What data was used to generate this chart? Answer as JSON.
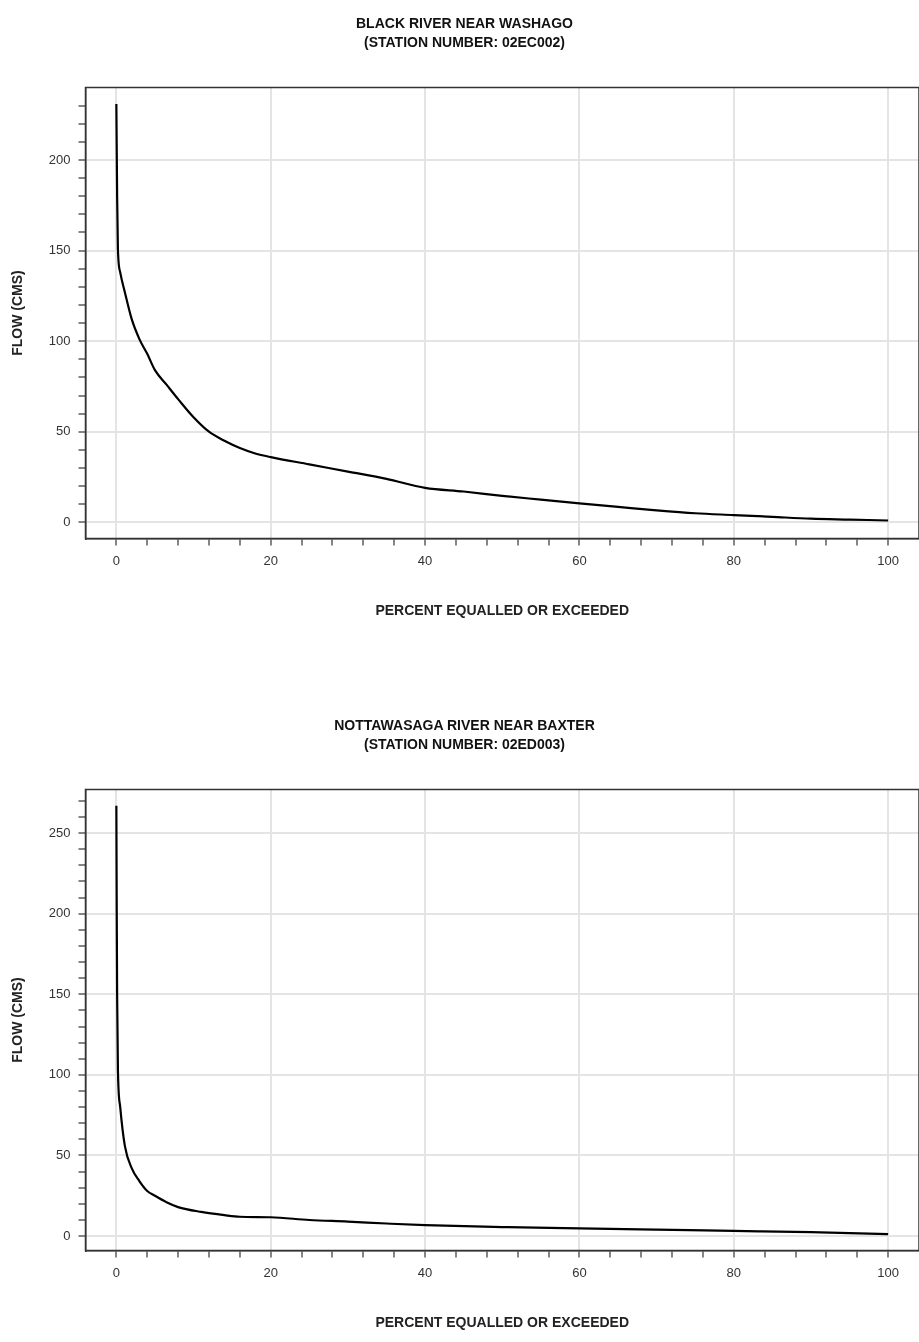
{
  "chart_data": [
    {
      "type": "line",
      "title": "BLACK RIVER NEAR WASHAGO",
      "subtitle": "(STATION NUMBER: 02EC002)",
      "xlabel": "PERCENT EQUALLED OR EXCEEDED",
      "ylabel": "FLOW (CMS)",
      "grid": true,
      "legend": false,
      "marker": "none",
      "line_style": "solid",
      "xlim": [
        -4,
        104
      ],
      "ylim": [
        -9,
        240
      ],
      "xticks": [
        0,
        {
          "value": 4,
          "label": null
        },
        {
          "value": 8,
          "label": null
        },
        {
          "value": 12,
          "label": null
        },
        {
          "value": 16,
          "label": null
        },
        20,
        {
          "value": 24,
          "label": null
        },
        {
          "value": 28,
          "label": null
        },
        {
          "value": 32,
          "label": null
        },
        {
          "value": 36,
          "label": null
        },
        40,
        {
          "value": 44,
          "label": null
        },
        {
          "value": 48,
          "label": null
        },
        {
          "value": 52,
          "label": null
        },
        {
          "value": 56,
          "label": null
        },
        60,
        {
          "value": 64,
          "label": null
        },
        {
          "value": 68,
          "label": null
        },
        {
          "value": 72,
          "label": null
        },
        {
          "value": 76,
          "label": null
        },
        80,
        {
          "value": 84,
          "label": null
        },
        {
          "value": 88,
          "label": null
        },
        {
          "value": 92,
          "label": null
        },
        {
          "value": 96,
          "label": null
        },
        100
      ],
      "yticks": [
        0,
        {
          "value": 10,
          "label": null
        },
        {
          "value": 20,
          "label": null
        },
        {
          "value": 30,
          "label": null
        },
        {
          "value": 40,
          "label": null
        },
        50,
        {
          "value": 60,
          "label": null
        },
        {
          "value": 70,
          "label": null
        },
        {
          "value": 80,
          "label": null
        },
        {
          "value": 90,
          "label": null
        },
        100,
        {
          "value": 110,
          "label": null
        },
        {
          "value": 120,
          "label": null
        },
        {
          "value": 130,
          "label": null
        },
        {
          "value": 140,
          "label": null
        },
        150,
        {
          "value": 160,
          "label": null
        },
        {
          "value": 170,
          "label": null
        },
        {
          "value": 180,
          "label": null
        },
        {
          "value": 190,
          "label": null
        },
        200,
        {
          "value": 210,
          "label": null
        },
        {
          "value": 220,
          "label": null
        },
        {
          "value": 230,
          "label": null
        }
      ],
      "series": [
        {
          "color": "#000000",
          "x": [
            0,
            0.1,
            0.2,
            0.5,
            1.1,
            2,
            3,
            4,
            5,
            6.5,
            8,
            10,
            12,
            14,
            16,
            18,
            20,
            25,
            30,
            35,
            40,
            45,
            50,
            55,
            60,
            65,
            70,
            75,
            80,
            85,
            90,
            95,
            100
          ],
          "values": [
            231,
            180,
            151,
            138,
            127,
            112,
            101,
            93,
            84,
            76,
            68,
            58,
            50,
            45,
            41,
            38,
            36,
            32,
            28,
            24,
            19,
            17,
            14.6,
            12.5,
            10.4,
            8.5,
            6.6,
            5,
            4,
            3,
            2,
            1.5,
            1
          ]
        }
      ]
    },
    {
      "type": "line",
      "title": "NOTTAWASAGA RIVER NEAR BAXTER",
      "subtitle": "(STATION NUMBER: 02ED003)",
      "xlabel": "PERCENT EQUALLED OR EXCEEDED",
      "ylabel": "FLOW (CMS)",
      "grid": true,
      "legend": false,
      "marker": "none",
      "line_style": "solid",
      "xlim": [
        -4,
        104
      ],
      "ylim": [
        -9,
        277
      ],
      "xticks": [
        0,
        {
          "value": 4,
          "label": null
        },
        {
          "value": 8,
          "label": null
        },
        {
          "value": 12,
          "label": null
        },
        {
          "value": 16,
          "label": null
        },
        20,
        {
          "value": 24,
          "label": null
        },
        {
          "value": 28,
          "label": null
        },
        {
          "value": 32,
          "label": null
        },
        {
          "value": 36,
          "label": null
        },
        40,
        {
          "value": 44,
          "label": null
        },
        {
          "value": 48,
          "label": null
        },
        {
          "value": 52,
          "label": null
        },
        {
          "value": 56,
          "label": null
        },
        60,
        {
          "value": 64,
          "label": null
        },
        {
          "value": 68,
          "label": null
        },
        {
          "value": 72,
          "label": null
        },
        {
          "value": 76,
          "label": null
        },
        80,
        {
          "value": 84,
          "label": null
        },
        {
          "value": 88,
          "label": null
        },
        {
          "value": 92,
          "label": null
        },
        {
          "value": 96,
          "label": null
        },
        100
      ],
      "yticks": [
        0,
        {
          "value": 10,
          "label": null
        },
        {
          "value": 20,
          "label": null
        },
        {
          "value": 30,
          "label": null
        },
        {
          "value": 40,
          "label": null
        },
        50,
        {
          "value": 60,
          "label": null
        },
        {
          "value": 70,
          "label": null
        },
        {
          "value": 80,
          "label": null
        },
        {
          "value": 90,
          "label": null
        },
        100,
        {
          "value": 110,
          "label": null
        },
        {
          "value": 120,
          "label": null
        },
        {
          "value": 130,
          "label": null
        },
        {
          "value": 140,
          "label": null
        },
        150,
        {
          "value": 160,
          "label": null
        },
        {
          "value": 170,
          "label": null
        },
        {
          "value": 180,
          "label": null
        },
        {
          "value": 190,
          "label": null
        },
        200,
        {
          "value": 210,
          "label": null
        },
        {
          "value": 220,
          "label": null
        },
        {
          "value": 230,
          "label": null
        },
        {
          "value": 240,
          "label": null
        },
        250,
        {
          "value": 260,
          "label": null
        },
        {
          "value": 270,
          "label": null
        }
      ],
      "series": [
        {
          "color": "#000000",
          "x": [
            0,
            0.05,
            0.1,
            0.2,
            0.5,
            1.1,
            2,
            3,
            4,
            5,
            6.5,
            8,
            11,
            14,
            16,
            20,
            25,
            30,
            35,
            40,
            50,
            60,
            70,
            80,
            90,
            100
          ],
          "values": [
            267,
            200,
            150,
            104,
            80,
            56,
            42,
            34,
            28,
            25,
            21,
            18,
            15,
            13,
            12,
            11.7,
            10,
            9,
            7.8,
            6.8,
            5.6,
            4.8,
            4,
            3.2,
            2.5,
            1.2
          ]
        }
      ]
    }
  ]
}
